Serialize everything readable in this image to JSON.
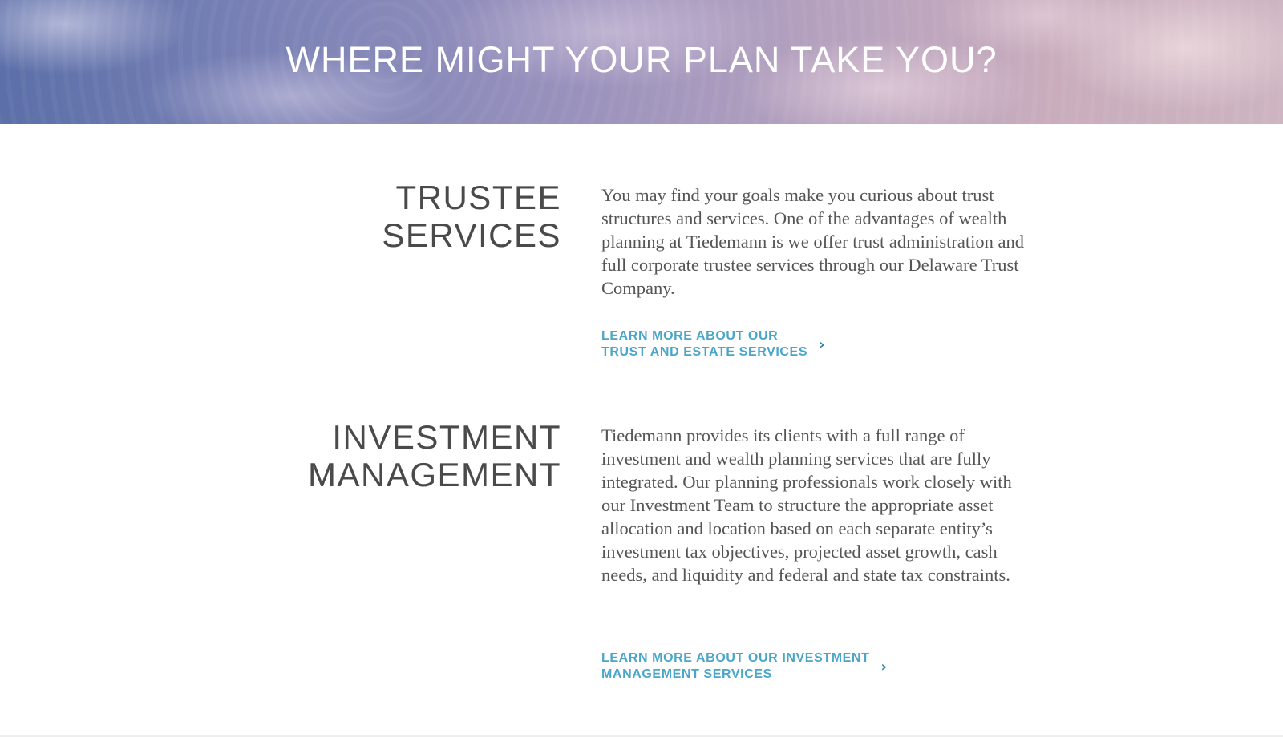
{
  "hero": {
    "title": "WHERE MIGHT YOUR PLAN TAKE YOU?"
  },
  "sections": [
    {
      "heading_lines": [
        "TRUSTEE",
        "SERVICES"
      ],
      "body": "You may find your goals make you curious about trust structures and services. One of the advantages of wealth planning at Tiedemann is we offer trust administration and full corporate trustee services through our Delaware Trust Company.",
      "link_lines": [
        "LEARN MORE ABOUT OUR",
        "TRUST AND ESTATE SERVICES"
      ],
      "link_icon": "chevron-right-icon"
    },
    {
      "heading_lines": [
        "INVESTMENT",
        "MANAGEMENT"
      ],
      "body": "Tiedemann provides its clients with a full range of investment and wealth planning services that are fully integrated. Our planning professionals work closely with our Investment Team to structure the appropriate asset allocation and location based on each separate entity’s investment tax objectives, projected asset growth, cash needs, and liquidity and federal and state tax constraints.",
      "link_lines": [
        "LEARN MORE ABOUT OUR INVESTMENT",
        "MANAGEMENT SERVICES"
      ],
      "link_icon": "chevron-right-icon"
    }
  ],
  "colors": {
    "link": "#4aa6c9",
    "heading": "#4a4a4a",
    "body": "#555555"
  }
}
